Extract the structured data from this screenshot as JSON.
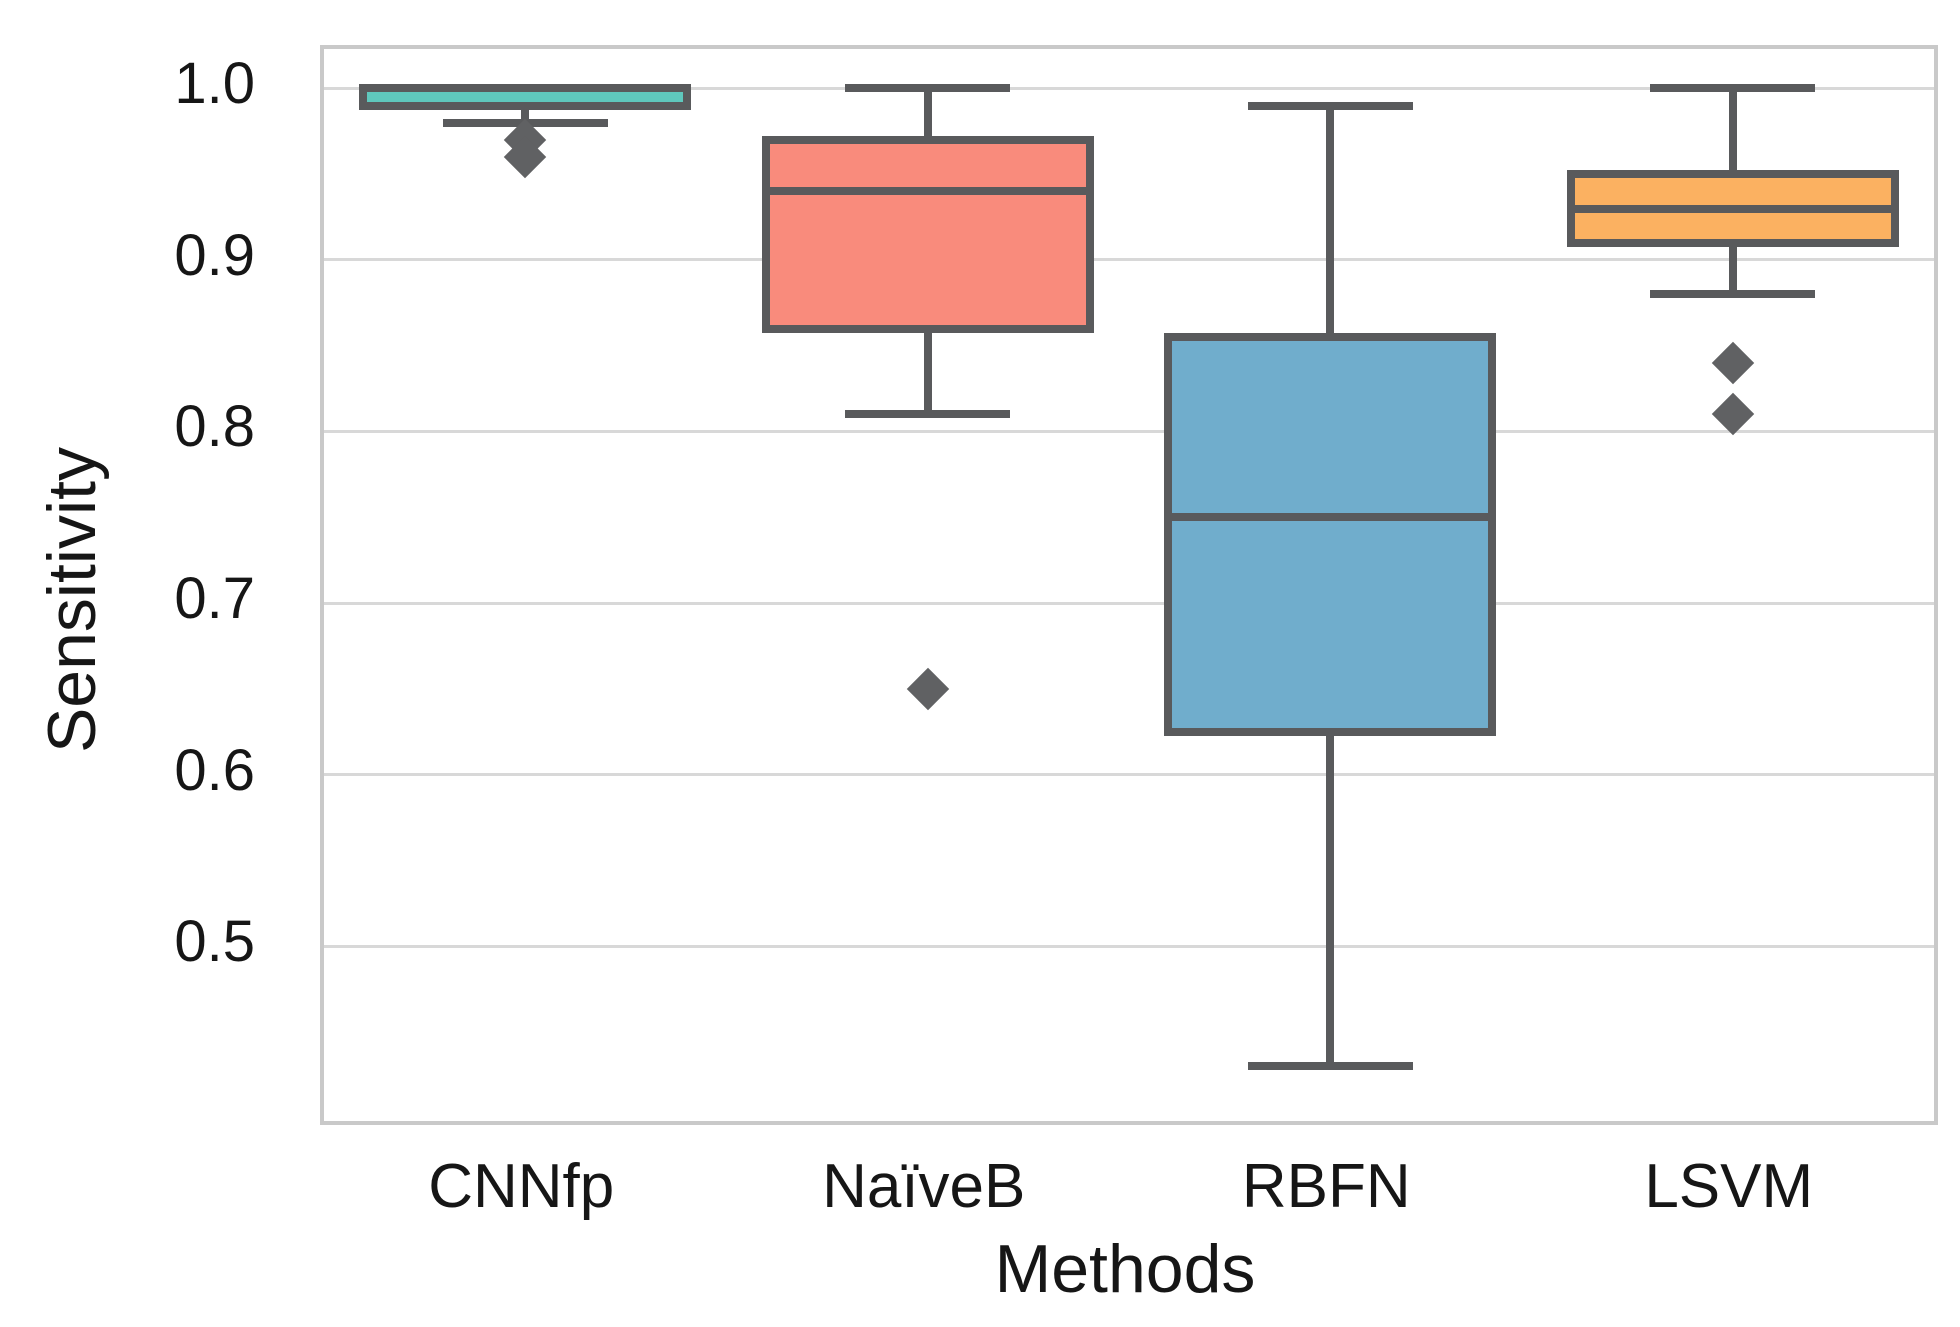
{
  "chart_data": {
    "type": "boxplot",
    "title": "",
    "xlabel": "Methods",
    "ylabel": "Sensitivity",
    "categories": [
      "CNNfp",
      "NaïveB",
      "RBFN",
      "LSVM"
    ],
    "ylim": [
      0.398,
      1.023
    ],
    "yticks": [
      1.0,
      0.9,
      0.8,
      0.7,
      0.6,
      0.5
    ],
    "ytick_labels": [
      "1.0",
      "0.9",
      "0.8",
      "0.7",
      "0.6",
      "0.5"
    ],
    "grid": "horizontal",
    "legend": "none",
    "series": [
      {
        "name": "CNNfp",
        "whisker_low": 0.98,
        "q1": 0.99,
        "median": 1.0,
        "q3": 1.0,
        "whisker_high": 1.0,
        "outliers": [
          0.97,
          0.96
        ],
        "fill_color": "#5fc8bd"
      },
      {
        "name": "NaïveB",
        "whisker_low": 0.81,
        "q1": 0.86,
        "median": 0.94,
        "q3": 0.97,
        "whisker_high": 1.0,
        "outliers": [
          0.65
        ],
        "fill_color": "#f98b7c"
      },
      {
        "name": "RBFN",
        "whisker_low": 0.43,
        "q1": 0.625,
        "median": 0.75,
        "q3": 0.855,
        "whisker_high": 0.99,
        "outliers": [],
        "fill_color": "#70adcc"
      },
      {
        "name": "LSVM",
        "whisker_low": 0.88,
        "q1": 0.91,
        "median": 0.93,
        "q3": 0.95,
        "whisker_high": 1.0,
        "outliers": [
          0.84,
          0.81
        ],
        "fill_color": "#fbb161"
      }
    ],
    "style_colors": {
      "box_edge": "#595a5c",
      "outlier": "#606163",
      "gridline": "#d8d8d8",
      "plot_border": "#c9c9c9",
      "text": "#161616",
      "background": "#ffffff"
    }
  }
}
